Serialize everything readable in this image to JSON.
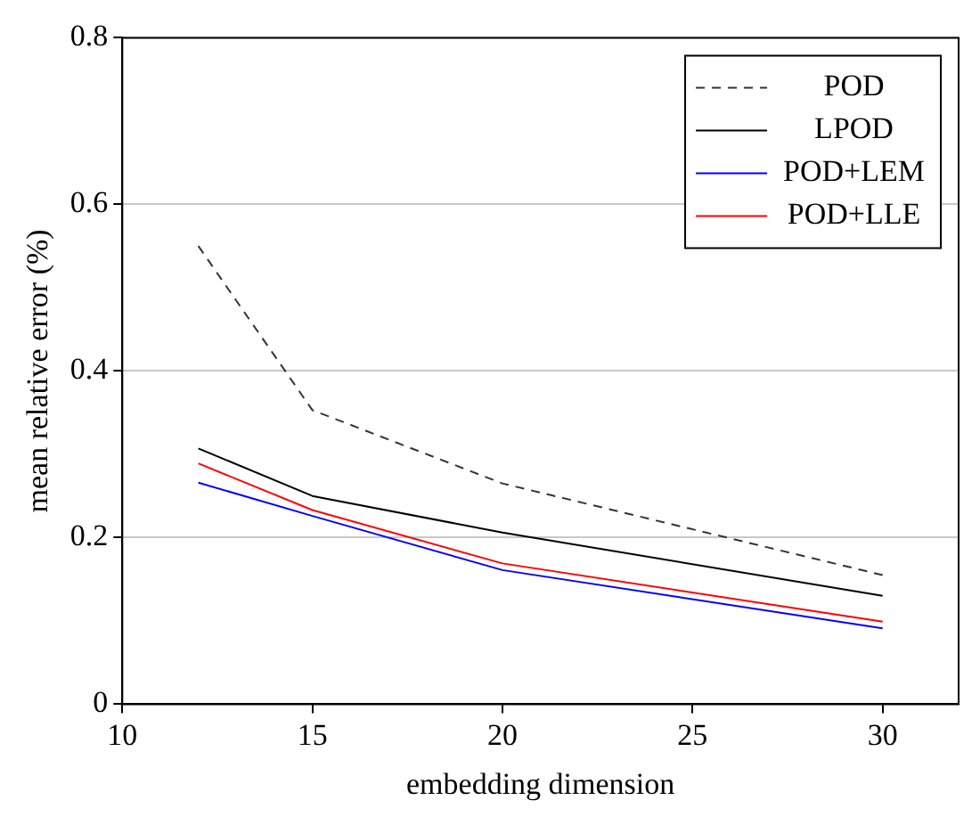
{
  "chart_data": {
    "type": "line",
    "xlabel": "embedding dimension",
    "ylabel": "mean relative error (%)",
    "x": [
      12,
      15,
      20,
      30
    ],
    "series": [
      {
        "name": "POD",
        "color": "#333333",
        "line_style": "dashed",
        "values": [
          0.55,
          0.353,
          0.265,
          0.155
        ]
      },
      {
        "name": "LPOD",
        "color": "#000000",
        "values": [
          0.307,
          0.25,
          0.206,
          0.13
        ]
      },
      {
        "name": "POD+LEM",
        "color": "#0000ff",
        "values": [
          0.266,
          0.226,
          0.161,
          0.091
        ]
      },
      {
        "name": "POD+LLE",
        "color": "#ff0000",
        "values": [
          0.289,
          0.233,
          0.169,
          0.099
        ]
      }
    ],
    "xlim": [
      10,
      32
    ],
    "xticks": [
      10,
      15,
      20,
      25,
      30
    ],
    "ylim": [
      0,
      0.8
    ],
    "yticks": [
      0,
      0.2,
      0.4,
      0.6,
      0.8
    ],
    "grid": "y",
    "legend": "top right",
    "marker": "none"
  }
}
